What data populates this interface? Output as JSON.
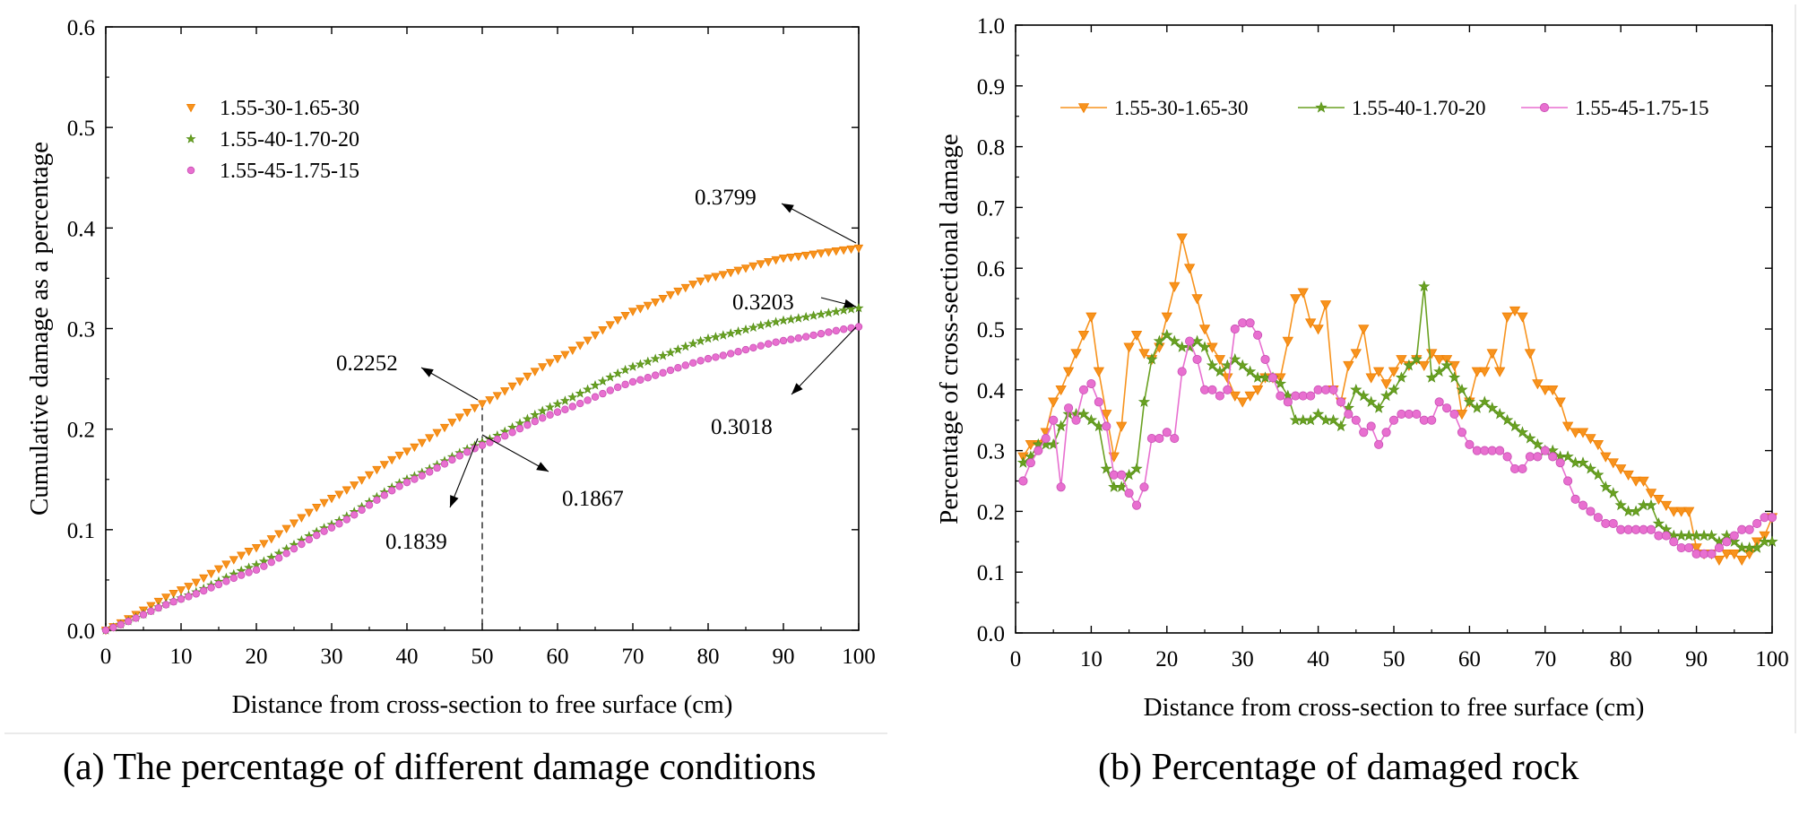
{
  "colors": {
    "orange": "#f7931e",
    "green": "#6aa121",
    "pink": "#e86fd0",
    "orange_edge": "#f07e00",
    "green_edge": "#4d8a12",
    "pink_edge": "#c84fb3"
  },
  "captions": {
    "a": "(a) The percentage of different damage conditions",
    "b": "(b) Percentage of damaged rock"
  },
  "chart_data": [
    {
      "id": "a",
      "type": "scatter",
      "title": "",
      "xlabel": "Distance from cross-section to free surface (cm)",
      "ylabel": "Cumulative damage as a percentage",
      "xlim": [
        0,
        100
      ],
      "ylim": [
        0,
        0.6
      ],
      "xticks": [
        "0",
        "10",
        "20",
        "30",
        "40",
        "50",
        "60",
        "70",
        "80",
        "90",
        "100"
      ],
      "yticks": [
        "0.0",
        "0.1",
        "0.2",
        "0.3",
        "0.4",
        "0.5",
        "0.6"
      ],
      "grid": false,
      "legend": "top-left",
      "series": [
        {
          "name": "1.55-30-1.65-30",
          "marker": "triangle-down",
          "color": "orange",
          "anchors": [
            [
              0,
              0
            ],
            [
              10,
              0.04
            ],
            [
              20,
              0.082
            ],
            [
              30,
              0.131
            ],
            [
              40,
              0.178
            ],
            [
              50,
              0.2252
            ],
            [
              60,
              0.27
            ],
            [
              70,
              0.317
            ],
            [
              80,
              0.35
            ],
            [
              90,
              0.37
            ],
            [
              100,
              0.3799
            ]
          ]
        },
        {
          "name": "1.55-40-1.70-20",
          "marker": "star",
          "color": "green",
          "anchors": [
            [
              0,
              0
            ],
            [
              10,
              0.032
            ],
            [
              20,
              0.065
            ],
            [
              30,
              0.105
            ],
            [
              40,
              0.15
            ],
            [
              50,
              0.1867
            ],
            [
              60,
              0.225
            ],
            [
              70,
              0.262
            ],
            [
              80,
              0.29
            ],
            [
              90,
              0.308
            ],
            [
              100,
              0.3203
            ]
          ]
        },
        {
          "name": "1.55-45-1.75-15",
          "marker": "circle",
          "color": "pink",
          "anchors": [
            [
              0,
              0
            ],
            [
              10,
              0.031
            ],
            [
              20,
              0.06
            ],
            [
              30,
              0.102
            ],
            [
              40,
              0.147
            ],
            [
              50,
              0.1839
            ],
            [
              60,
              0.217
            ],
            [
              70,
              0.247
            ],
            [
              80,
              0.27
            ],
            [
              90,
              0.288
            ],
            [
              100,
              0.3018
            ]
          ]
        }
      ],
      "annotations": [
        {
          "text": "0.3799",
          "at": [
            100,
            0.3799
          ]
        },
        {
          "text": "0.3203",
          "at": [
            100,
            0.3203
          ]
        },
        {
          "text": "0.3018",
          "at": [
            100,
            0.3018
          ]
        },
        {
          "text": "0.2252",
          "at": [
            50,
            0.2252
          ]
        },
        {
          "text": "0.1867",
          "at": [
            50,
            0.1867
          ]
        },
        {
          "text": "0.1839",
          "at": [
            50,
            0.1839
          ]
        }
      ]
    },
    {
      "id": "b",
      "type": "line",
      "title": "",
      "xlabel": "Distance from cross-section to free surface (cm)",
      "ylabel": "Percentage of cross-sectional damage",
      "xlim": [
        0,
        100
      ],
      "ylim": [
        0,
        1.0
      ],
      "xticks": [
        "0",
        "10",
        "20",
        "30",
        "40",
        "50",
        "60",
        "70",
        "80",
        "90",
        "100"
      ],
      "yticks": [
        "0.0",
        "0.1",
        "0.2",
        "0.3",
        "0.4",
        "0.5",
        "0.6",
        "0.7",
        "0.8",
        "0.9",
        "1.0"
      ],
      "grid": false,
      "legend": "top",
      "series": [
        {
          "name": "1.55-30-1.65-30",
          "marker": "triangle-down",
          "color": "orange",
          "x": [
            1,
            2,
            3,
            4,
            5,
            6,
            7,
            8,
            9,
            10,
            11,
            12,
            13,
            14,
            15,
            16,
            17,
            18,
            19,
            20,
            21,
            22,
            23,
            24,
            25,
            26,
            27,
            28,
            29,
            30,
            31,
            32,
            33,
            34,
            35,
            36,
            37,
            38,
            39,
            40,
            41,
            42,
            43,
            44,
            45,
            46,
            47,
            48,
            49,
            50,
            51,
            52,
            53,
            54,
            55,
            56,
            57,
            58,
            59,
            60,
            61,
            62,
            63,
            64,
            65,
            66,
            67,
            68,
            69,
            70,
            71,
            72,
            73,
            74,
            75,
            76,
            77,
            78,
            79,
            80,
            81,
            82,
            83,
            84,
            85,
            86,
            87,
            88,
            89,
            90,
            91,
            92,
            93,
            94,
            95,
            96,
            97,
            98,
            99,
            100
          ],
          "values": [
            0.29,
            0.31,
            0.31,
            0.33,
            0.38,
            0.4,
            0.43,
            0.46,
            0.49,
            0.52,
            0.43,
            0.36,
            0.29,
            0.34,
            0.47,
            0.49,
            0.46,
            0.45,
            0.47,
            0.52,
            0.57,
            0.65,
            0.6,
            0.55,
            0.5,
            0.47,
            0.45,
            0.42,
            0.39,
            0.38,
            0.39,
            0.4,
            0.42,
            0.42,
            0.42,
            0.48,
            0.55,
            0.56,
            0.51,
            0.5,
            0.54,
            0.4,
            0.38,
            0.44,
            0.46,
            0.5,
            0.42,
            0.43,
            0.41,
            0.43,
            0.45,
            0.44,
            0.45,
            0.44,
            0.46,
            0.45,
            0.45,
            0.44,
            0.36,
            0.38,
            0.43,
            0.43,
            0.46,
            0.43,
            0.52,
            0.53,
            0.52,
            0.46,
            0.41,
            0.4,
            0.4,
            0.38,
            0.34,
            0.33,
            0.33,
            0.32,
            0.31,
            0.29,
            0.28,
            0.27,
            0.26,
            0.25,
            0.25,
            0.23,
            0.22,
            0.21,
            0.2,
            0.2,
            0.2,
            0.14,
            0.13,
            0.13,
            0.12,
            0.13,
            0.13,
            0.12,
            0.13,
            0.15,
            0.16,
            0.19
          ]
        },
        {
          "name": "1.55-40-1.70-20",
          "marker": "star",
          "color": "green",
          "x": [
            1,
            2,
            3,
            4,
            5,
            6,
            7,
            8,
            9,
            10,
            11,
            12,
            13,
            14,
            15,
            16,
            17,
            18,
            19,
            20,
            21,
            22,
            23,
            24,
            25,
            26,
            27,
            28,
            29,
            30,
            31,
            32,
            33,
            34,
            35,
            36,
            37,
            38,
            39,
            40,
            41,
            42,
            43,
            44,
            45,
            46,
            47,
            48,
            49,
            50,
            51,
            52,
            53,
            54,
            55,
            56,
            57,
            58,
            59,
            60,
            61,
            62,
            63,
            64,
            65,
            66,
            67,
            68,
            69,
            70,
            71,
            72,
            73,
            74,
            75,
            76,
            77,
            78,
            79,
            80,
            81,
            82,
            83,
            84,
            85,
            86,
            87,
            88,
            89,
            90,
            91,
            92,
            93,
            94,
            95,
            96,
            97,
            98,
            99,
            100
          ],
          "values": [
            0.28,
            0.29,
            0.31,
            0.31,
            0.31,
            0.34,
            0.36,
            0.36,
            0.36,
            0.35,
            0.34,
            0.27,
            0.24,
            0.24,
            0.26,
            0.27,
            0.38,
            0.45,
            0.48,
            0.49,
            0.48,
            0.47,
            0.47,
            0.48,
            0.47,
            0.44,
            0.43,
            0.44,
            0.45,
            0.44,
            0.43,
            0.42,
            0.42,
            0.42,
            0.41,
            0.39,
            0.35,
            0.35,
            0.35,
            0.36,
            0.35,
            0.35,
            0.34,
            0.37,
            0.4,
            0.39,
            0.38,
            0.37,
            0.39,
            0.4,
            0.42,
            0.44,
            0.45,
            0.57,
            0.42,
            0.43,
            0.44,
            0.42,
            0.4,
            0.38,
            0.37,
            0.38,
            0.37,
            0.36,
            0.35,
            0.34,
            0.33,
            0.32,
            0.31,
            0.3,
            0.3,
            0.29,
            0.29,
            0.28,
            0.28,
            0.27,
            0.26,
            0.24,
            0.23,
            0.21,
            0.2,
            0.2,
            0.21,
            0.21,
            0.18,
            0.17,
            0.16,
            0.16,
            0.16,
            0.16,
            0.16,
            0.16,
            0.15,
            0.16,
            0.15,
            0.14,
            0.14,
            0.14,
            0.15,
            0.15
          ]
        },
        {
          "name": "1.55-45-1.75-15",
          "marker": "circle",
          "color": "pink",
          "x": [
            1,
            2,
            3,
            4,
            5,
            6,
            7,
            8,
            9,
            10,
            11,
            12,
            13,
            14,
            15,
            16,
            17,
            18,
            19,
            20,
            21,
            22,
            23,
            24,
            25,
            26,
            27,
            28,
            29,
            30,
            31,
            32,
            33,
            34,
            35,
            36,
            37,
            38,
            39,
            40,
            41,
            42,
            43,
            44,
            45,
            46,
            47,
            48,
            49,
            50,
            51,
            52,
            53,
            54,
            55,
            56,
            57,
            58,
            59,
            60,
            61,
            62,
            63,
            64,
            65,
            66,
            67,
            68,
            69,
            70,
            71,
            72,
            73,
            74,
            75,
            76,
            77,
            78,
            79,
            80,
            81,
            82,
            83,
            84,
            85,
            86,
            87,
            88,
            89,
            90,
            91,
            92,
            93,
            94,
            95,
            96,
            97,
            98,
            99,
            100
          ],
          "values": [
            0.25,
            0.28,
            0.3,
            0.32,
            0.35,
            0.24,
            0.37,
            0.35,
            0.4,
            0.41,
            0.38,
            0.34,
            0.26,
            0.26,
            0.23,
            0.21,
            0.24,
            0.32,
            0.32,
            0.33,
            0.32,
            0.43,
            0.48,
            0.45,
            0.4,
            0.4,
            0.39,
            0.4,
            0.5,
            0.51,
            0.51,
            0.49,
            0.45,
            0.42,
            0.39,
            0.38,
            0.39,
            0.39,
            0.39,
            0.4,
            0.4,
            0.4,
            0.38,
            0.36,
            0.35,
            0.33,
            0.34,
            0.31,
            0.33,
            0.35,
            0.36,
            0.36,
            0.36,
            0.35,
            0.35,
            0.38,
            0.37,
            0.36,
            0.33,
            0.31,
            0.3,
            0.3,
            0.3,
            0.3,
            0.29,
            0.27,
            0.27,
            0.29,
            0.29,
            0.3,
            0.29,
            0.28,
            0.25,
            0.22,
            0.21,
            0.2,
            0.19,
            0.18,
            0.18,
            0.17,
            0.17,
            0.17,
            0.17,
            0.17,
            0.16,
            0.16,
            0.15,
            0.14,
            0.14,
            0.13,
            0.13,
            0.13,
            0.14,
            0.15,
            0.16,
            0.17,
            0.17,
            0.18,
            0.19,
            0.19
          ]
        }
      ]
    }
  ]
}
